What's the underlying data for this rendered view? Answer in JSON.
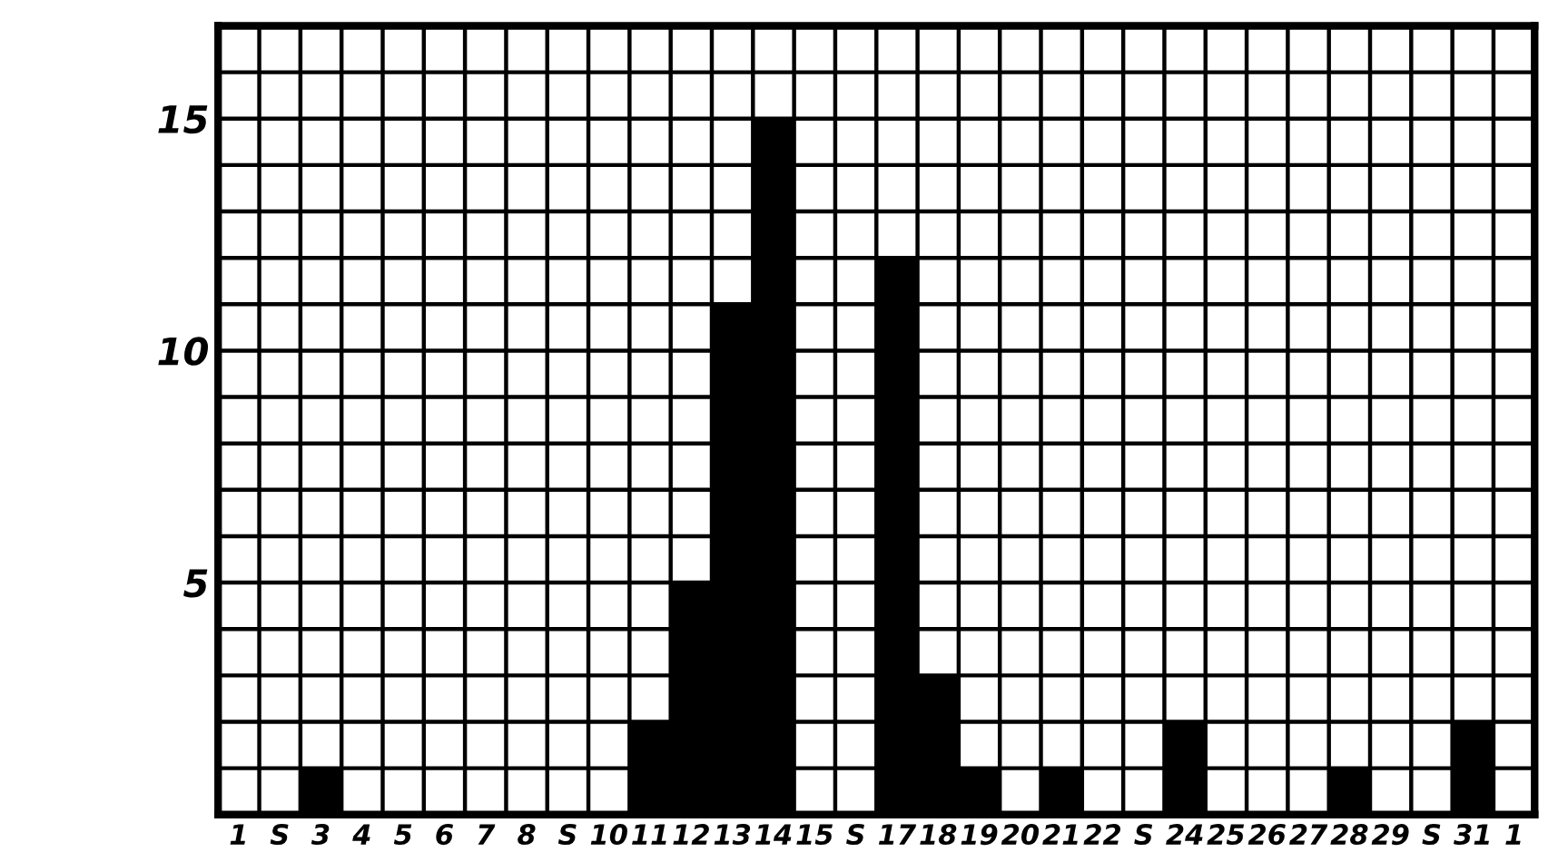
{
  "chart_data": {
    "type": "bar",
    "categories": [
      "1",
      "S",
      "3",
      "4",
      "5",
      "6",
      "7",
      "8",
      "S",
      "10",
      "11",
      "12",
      "13",
      "14",
      "15",
      "S",
      "17",
      "18",
      "19",
      "20",
      "21",
      "22",
      "S",
      "24",
      "25",
      "26",
      "27",
      "28",
      "29",
      "S",
      "31",
      "1"
    ],
    "values": [
      0,
      0,
      1,
      0,
      0,
      0,
      0,
      0,
      0,
      0,
      2,
      5,
      11,
      15,
      0,
      0,
      12,
      3,
      1,
      0,
      1,
      0,
      0,
      2,
      0,
      0,
      0,
      1,
      0,
      0,
      2,
      0
    ],
    "color": "#000000",
    "ylim": [
      0,
      17
    ],
    "yticks": [
      {
        "value": 1,
        "label": null
      },
      {
        "value": 2,
        "label": null
      },
      {
        "value": 3,
        "label": null
      },
      {
        "value": 4,
        "label": null
      },
      5,
      {
        "value": 6,
        "label": null
      },
      {
        "value": 7,
        "label": null
      },
      {
        "value": 8,
        "label": null
      },
      {
        "value": 9,
        "label": null
      },
      10,
      {
        "value": 11,
        "label": null
      },
      {
        "value": 12,
        "label": null
      },
      {
        "value": 13,
        "label": null
      },
      {
        "value": 14,
        "label": null
      },
      15,
      {
        "value": 16,
        "label": null
      },
      {
        "value": 17,
        "label": null
      }
    ],
    "grid": true
  }
}
